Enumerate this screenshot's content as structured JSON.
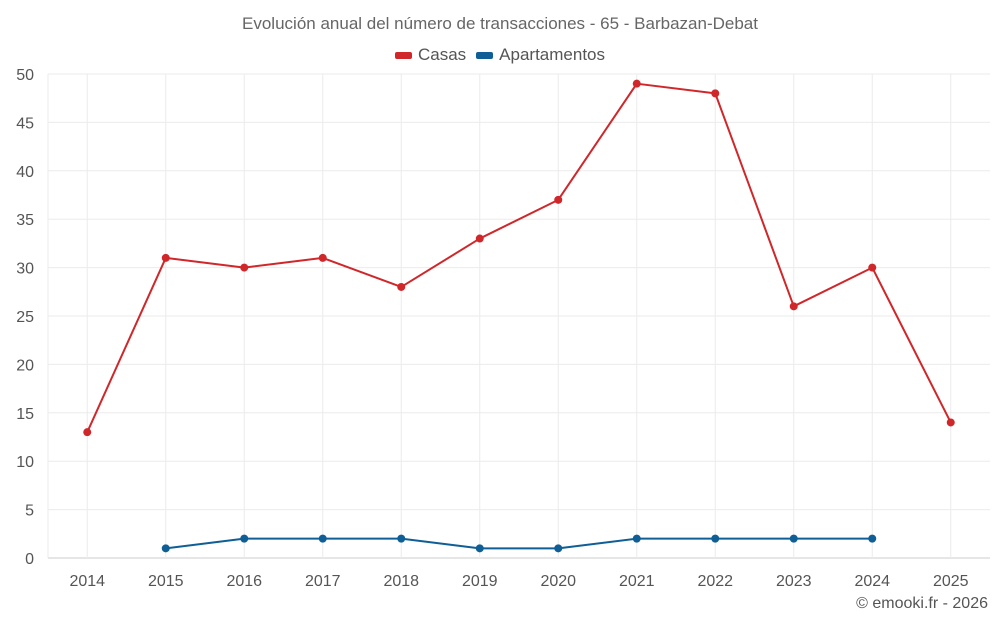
{
  "chart_data": {
    "type": "line",
    "title": "Evolución anual del número de transacciones - 65 - Barbazan-Debat",
    "categories": [
      "2014",
      "2015",
      "2016",
      "2017",
      "2018",
      "2019",
      "2020",
      "2021",
      "2022",
      "2023",
      "2024",
      "2025"
    ],
    "series": [
      {
        "name": "Casas",
        "color": "#d0272a",
        "values": [
          13,
          31,
          30,
          31,
          28,
          33,
          37,
          49,
          48,
          26,
          30,
          14
        ]
      },
      {
        "name": "Apartamentos",
        "color": "#0f5f96",
        "values": [
          null,
          1,
          2,
          2,
          2,
          1,
          1,
          2,
          2,
          2,
          2,
          null
        ]
      }
    ],
    "ylim": [
      0,
      50
    ],
    "yticks": [
      0,
      5,
      10,
      15,
      20,
      25,
      30,
      35,
      40,
      45,
      50
    ],
    "grid": true,
    "legend_position": "top-center",
    "xlabel": "",
    "ylabel": ""
  },
  "credit": "© emooki.fr - 2026"
}
